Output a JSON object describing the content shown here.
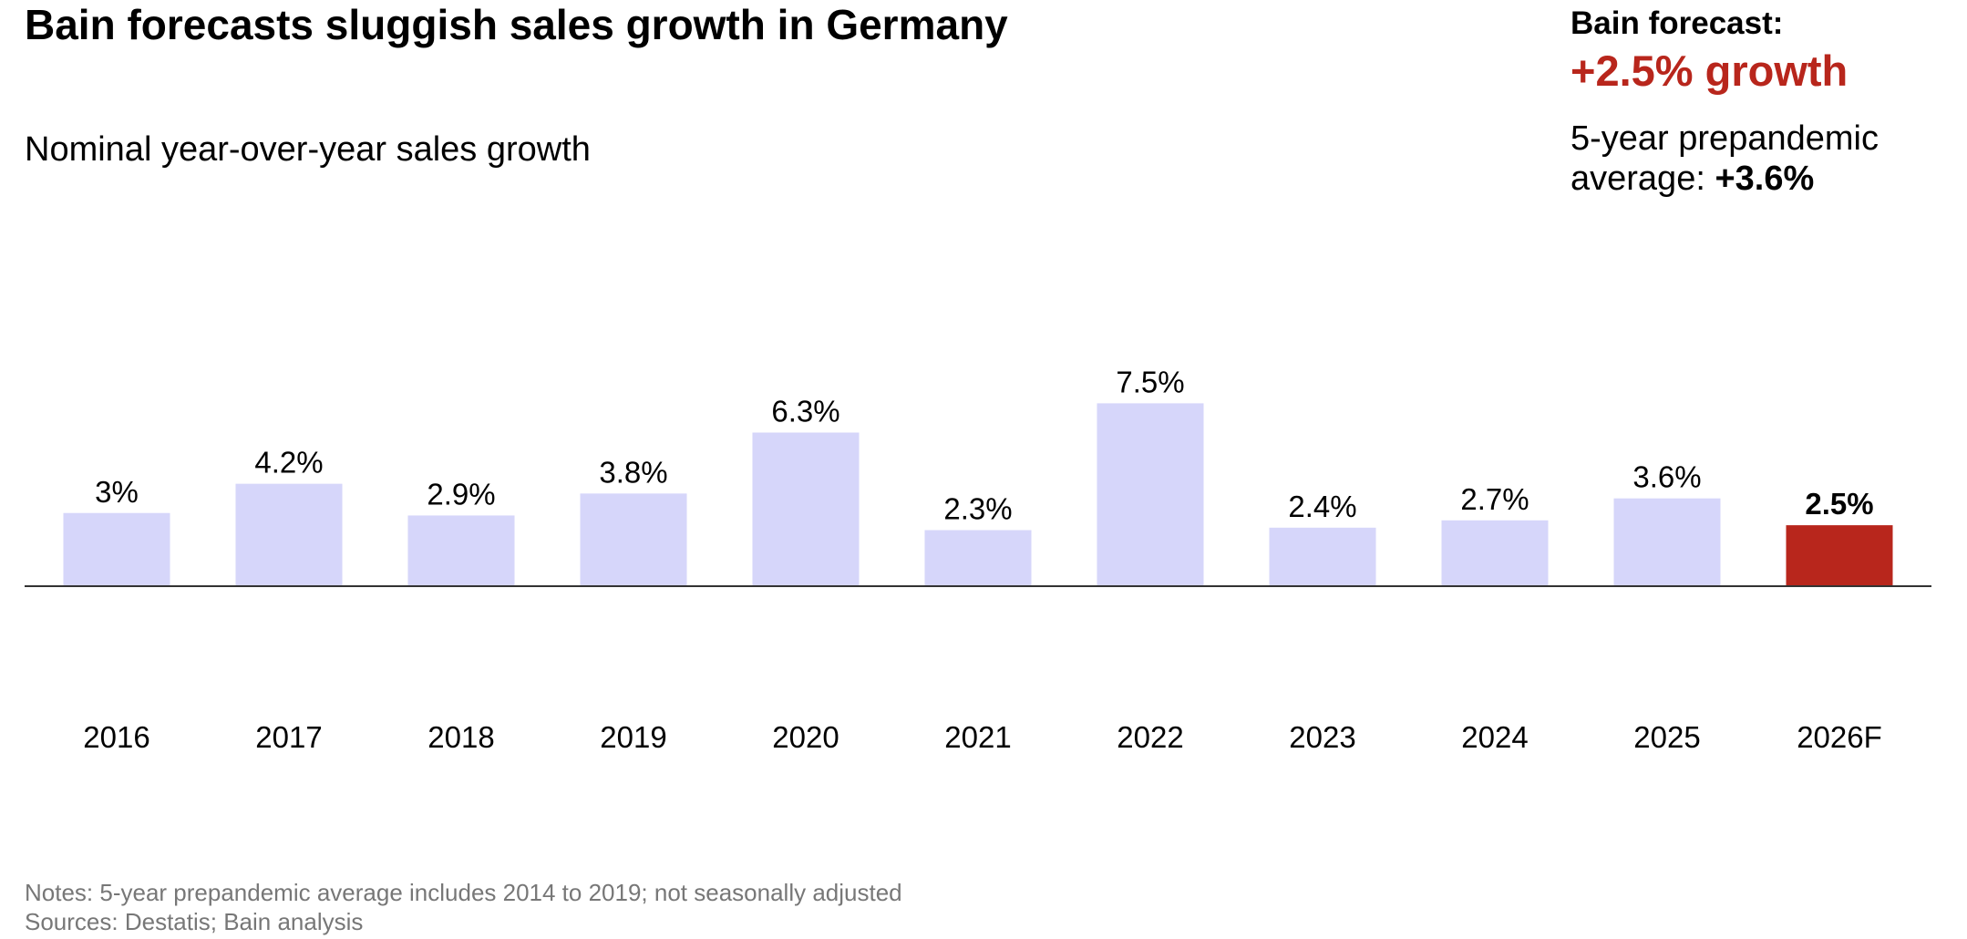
{
  "chart_data": {
    "type": "bar",
    "title": "Bain forecasts sluggish sales growth in Germany",
    "subtitle": "Nominal year-over-year sales growth",
    "callout": {
      "heading": "Bain forecast:",
      "highlight": "+2.5% growth",
      "average_label": "5-year prepandemic average:",
      "average_value": "+3.6%"
    },
    "categories": [
      "2016",
      "2017",
      "2018",
      "2019",
      "2020",
      "2021",
      "2022",
      "2023",
      "2024",
      "2025",
      "2026F"
    ],
    "values": [
      3,
      4.2,
      2.9,
      3.8,
      6.3,
      2.3,
      7.5,
      2.4,
      2.7,
      3.6,
      2.5
    ],
    "value_labels": [
      "3%",
      "4.2%",
      "2.9%",
      "3.8%",
      "6.3%",
      "2.3%",
      "7.5%",
      "2.4%",
      "2.7%",
      "3.6%",
      "2.5%"
    ],
    "colors": [
      "#d6d6fa",
      "#d6d6fa",
      "#d6d6fa",
      "#d6d6fa",
      "#d6d6fa",
      "#d6d6fa",
      "#d6d6fa",
      "#d6d6fa",
      "#d6d6fa",
      "#d6d6fa",
      "#b8261c"
    ],
    "ylim": [
      0,
      8
    ],
    "notes": "Notes: 5-year prepandemic average includes 2014 to 2019; not seasonally adjusted",
    "sources": "Sources: Destatis; Bain analysis"
  }
}
